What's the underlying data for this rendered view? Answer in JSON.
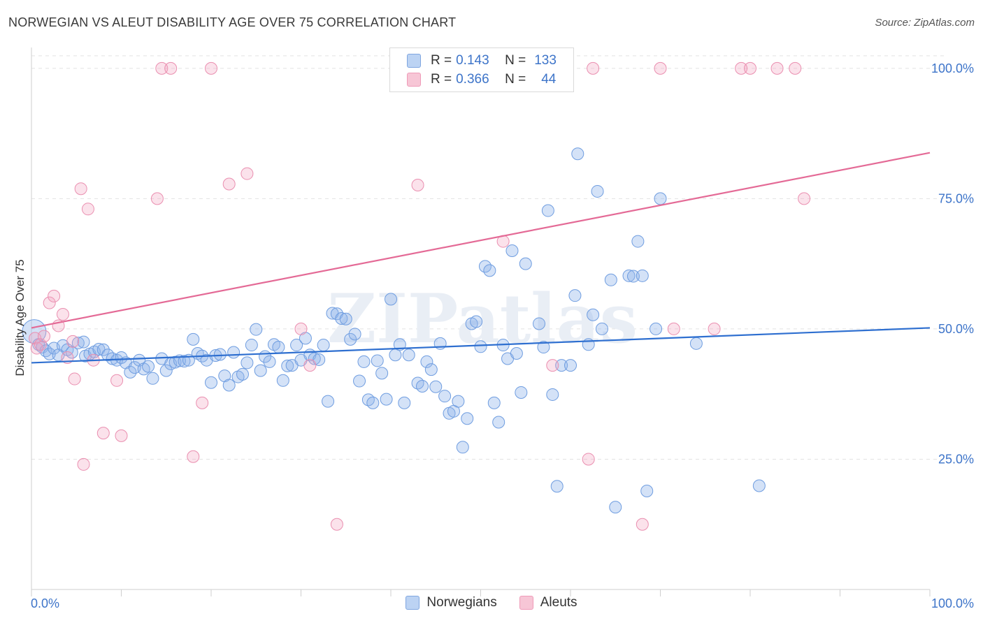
{
  "title": "NORWEGIAN VS ALEUT DISABILITY AGE OVER 75 CORRELATION CHART",
  "source": "Source: ZipAtlas.com",
  "watermark": "ZIPatlas",
  "legend_top": [
    {
      "r_label": "R =",
      "r_value": "0.143",
      "n_label": "N =",
      "n_value": "133"
    },
    {
      "r_label": "R =",
      "r_value": "0.366",
      "n_label": "N =",
      "n_value": "44"
    }
  ],
  "chart_data": {
    "type": "scatter",
    "title": "NORWEGIAN VS ALEUT DISABILITY AGE OVER 75 CORRELATION CHART",
    "xlabel": "",
    "ylabel": "Disability Age Over 75",
    "xlim": [
      0,
      100
    ],
    "ylim": [
      0,
      104
    ],
    "x_tick_labels": [
      "0.0%",
      "100.0%"
    ],
    "y_ticks": [
      25,
      50,
      75,
      100
    ],
    "y_tick_labels": [
      "25.0%",
      "50.0%",
      "75.0%",
      "100.0%"
    ],
    "grid": true,
    "legend_position": "bottom",
    "colors": {
      "norwegians": "#8fb4ea",
      "aleuts": "#f2a5c0",
      "blue_line": "#2e6fd0",
      "pink_line": "#e46a96",
      "tick_text": "#3d74c9"
    },
    "series": [
      {
        "name": "Norwegians",
        "R": 0.143,
        "N": 133,
        "trend": [
          [
            0,
            43.5
          ],
          [
            100,
            50.2
          ]
        ],
        "points": [
          [
            0.3,
            49.5
          ],
          [
            0.8,
            47.0
          ],
          [
            1.2,
            46.5
          ],
          [
            1.6,
            45.8
          ],
          [
            2.0,
            45.2
          ],
          [
            2.5,
            46.3
          ],
          [
            3.0,
            45.0
          ],
          [
            3.5,
            46.8
          ],
          [
            4.0,
            46.0
          ],
          [
            4.5,
            45.5
          ],
          [
            5.2,
            47.3
          ],
          [
            5.8,
            47.5
          ],
          [
            6.0,
            44.8
          ],
          [
            6.5,
            45.2
          ],
          [
            7.0,
            45.6
          ],
          [
            7.5,
            46.1
          ],
          [
            8.0,
            46.0
          ],
          [
            8.5,
            45.0
          ],
          [
            9.0,
            44.3
          ],
          [
            9.5,
            44.0
          ],
          [
            10.0,
            44.5
          ],
          [
            10.5,
            43.5
          ],
          [
            11.0,
            41.7
          ],
          [
            11.5,
            42.6
          ],
          [
            12.0,
            44.0
          ],
          [
            12.5,
            42.3
          ],
          [
            13.0,
            42.8
          ],
          [
            13.5,
            40.5
          ],
          [
            14.5,
            44.3
          ],
          [
            15.0,
            42.0
          ],
          [
            15.5,
            43.3
          ],
          [
            16.0,
            43.6
          ],
          [
            16.5,
            43.9
          ],
          [
            17.0,
            43.8
          ],
          [
            17.5,
            44.0
          ],
          [
            18.0,
            48.0
          ],
          [
            18.5,
            45.3
          ],
          [
            19.0,
            44.8
          ],
          [
            19.5,
            44.0
          ],
          [
            20.0,
            39.7
          ],
          [
            20.5,
            44.9
          ],
          [
            21.0,
            45.1
          ],
          [
            21.5,
            41.0
          ],
          [
            22.0,
            39.2
          ],
          [
            22.5,
            45.5
          ],
          [
            23.0,
            40.8
          ],
          [
            23.5,
            41.3
          ],
          [
            24.0,
            43.5
          ],
          [
            24.5,
            46.9
          ],
          [
            25.0,
            49.9
          ],
          [
            25.5,
            42.0
          ],
          [
            26.0,
            44.7
          ],
          [
            26.5,
            43.7
          ],
          [
            27.0,
            47.0
          ],
          [
            27.5,
            46.5
          ],
          [
            28.0,
            40.1
          ],
          [
            28.5,
            42.9
          ],
          [
            29.0,
            43.0
          ],
          [
            29.5,
            46.9
          ],
          [
            30.0,
            44.0
          ],
          [
            30.5,
            48.2
          ],
          [
            31.0,
            45.0
          ],
          [
            31.5,
            44.3
          ],
          [
            32.0,
            44.1
          ],
          [
            32.5,
            46.9
          ],
          [
            33.0,
            36.1
          ],
          [
            33.5,
            53.0
          ],
          [
            34.0,
            52.9
          ],
          [
            34.5,
            52.0
          ],
          [
            35.0,
            51.9
          ],
          [
            35.5,
            48.0
          ],
          [
            36.0,
            49.0
          ],
          [
            36.5,
            40.0
          ],
          [
            37.0,
            43.7
          ],
          [
            37.5,
            36.4
          ],
          [
            38.0,
            35.8
          ],
          [
            38.5,
            43.9
          ],
          [
            39.0,
            41.5
          ],
          [
            39.5,
            36.5
          ],
          [
            40.0,
            55.7
          ],
          [
            40.5,
            45.0
          ],
          [
            41.0,
            47.0
          ],
          [
            41.5,
            35.8
          ],
          [
            42.0,
            45.0
          ],
          [
            43.0,
            39.6
          ],
          [
            43.5,
            39.0
          ],
          [
            44.0,
            43.7
          ],
          [
            44.5,
            42.2
          ],
          [
            45.0,
            38.9
          ],
          [
            45.5,
            47.2
          ],
          [
            46.0,
            37.1
          ],
          [
            46.5,
            33.8
          ],
          [
            47.0,
            34.2
          ],
          [
            47.5,
            36.1
          ],
          [
            48.0,
            27.3
          ],
          [
            48.5,
            32.8
          ],
          [
            49.0,
            51.0
          ],
          [
            49.5,
            51.4
          ],
          [
            50.0,
            46.6
          ],
          [
            50.5,
            62.0
          ],
          [
            51.0,
            61.2
          ],
          [
            51.5,
            35.8
          ],
          [
            52.0,
            32.1
          ],
          [
            52.5,
            46.9
          ],
          [
            53.0,
            44.3
          ],
          [
            53.5,
            65.0
          ],
          [
            54.0,
            45.3
          ],
          [
            54.5,
            37.8
          ],
          [
            55.0,
            62.5
          ],
          [
            56.5,
            51.0
          ],
          [
            57.0,
            46.5
          ],
          [
            57.5,
            72.7
          ],
          [
            58.0,
            37.4
          ],
          [
            58.5,
            19.8
          ],
          [
            59.0,
            43.0
          ],
          [
            60.0,
            43.0
          ],
          [
            60.5,
            56.4
          ],
          [
            60.8,
            83.6
          ],
          [
            62.0,
            47.0
          ],
          [
            62.5,
            52.7
          ],
          [
            63.0,
            76.4
          ],
          [
            63.5,
            50.0
          ],
          [
            64.5,
            59.4
          ],
          [
            65.0,
            15.8
          ],
          [
            66.5,
            60.2
          ],
          [
            67.0,
            60.1
          ],
          [
            67.5,
            66.8
          ],
          [
            68.0,
            60.2
          ],
          [
            68.5,
            18.9
          ],
          [
            69.5,
            50.0
          ],
          [
            70.0,
            75.0
          ],
          [
            74.0,
            47.2
          ],
          [
            81.0,
            19.9
          ]
        ]
      },
      {
        "name": "Aleuts",
        "R": 0.366,
        "N": 44,
        "trend": [
          [
            0,
            50.2
          ],
          [
            100,
            83.8
          ]
        ],
        "points": [
          [
            0.4,
            48.2
          ],
          [
            0.6,
            46.3
          ],
          [
            1.0,
            47.0
          ],
          [
            1.4,
            48.6
          ],
          [
            2.0,
            55.0
          ],
          [
            2.5,
            56.3
          ],
          [
            3.0,
            50.6
          ],
          [
            3.5,
            52.8
          ],
          [
            4.0,
            44.5
          ],
          [
            4.6,
            47.6
          ],
          [
            4.8,
            40.4
          ],
          [
            5.5,
            76.9
          ],
          [
            5.8,
            24.0
          ],
          [
            6.3,
            73.0
          ],
          [
            6.9,
            44.0
          ],
          [
            8.0,
            30.0
          ],
          [
            9.5,
            40.1
          ],
          [
            10.0,
            29.5
          ],
          [
            14.0,
            75.0
          ],
          [
            14.5,
            100.0
          ],
          [
            15.5,
            100.0
          ],
          [
            18.0,
            25.5
          ],
          [
            19.0,
            35.8
          ],
          [
            20.0,
            100.0
          ],
          [
            22.0,
            77.8
          ],
          [
            24.0,
            79.8
          ],
          [
            30.0,
            50.0
          ],
          [
            31.0,
            43.0
          ],
          [
            34.0,
            12.5
          ],
          [
            43.0,
            77.6
          ],
          [
            47.0,
            100.0
          ],
          [
            52.5,
            66.8
          ],
          [
            58.0,
            43.0
          ],
          [
            62.0,
            25.0
          ],
          [
            62.5,
            100.0
          ],
          [
            68.0,
            12.5
          ],
          [
            70.0,
            100.0
          ],
          [
            71.5,
            50.0
          ],
          [
            76.0,
            50.0
          ],
          [
            79.0,
            100.0
          ],
          [
            80.0,
            100.0
          ],
          [
            83.0,
            100.0
          ],
          [
            85.0,
            100.0
          ],
          [
            86.0,
            75.0
          ]
        ]
      }
    ]
  },
  "bottom_legend": [
    "Norwegians",
    "Aleuts"
  ]
}
